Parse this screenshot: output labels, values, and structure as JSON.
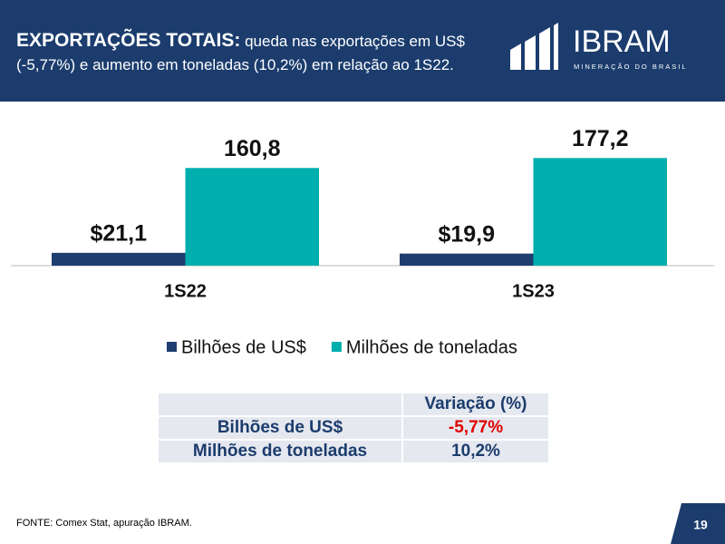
{
  "header": {
    "title": "EXPORTAÇÕES TOTAIS:",
    "subtitle": "queda nas exportações em US$ (-5,77%) e aumento em toneladas (10,2%) em relação ao 1S22.",
    "logo": "IBRAM",
    "logo_tagline": "MINERAÇÃO DO BRASIL"
  },
  "chart_data": {
    "type": "bar",
    "categories": [
      "1S22",
      "1S23"
    ],
    "series": [
      {
        "name": "Bilhões de US$",
        "color": "#1f3d6e",
        "values": [
          21.1,
          19.9
        ],
        "value_labels": [
          "$21,1",
          "$19,9"
        ]
      },
      {
        "name": "Milhões de toneladas",
        "color": "#00aeae",
        "values": [
          160.8,
          177.2
        ],
        "value_labels": [
          "160,8",
          "177,2"
        ]
      }
    ]
  },
  "table": {
    "column_header": "Variação (%)",
    "rows": [
      [
        "Bilhões de US$",
        "-5,77%"
      ],
      [
        "Milhões de toneladas",
        "10,2%"
      ]
    ]
  },
  "footer": {
    "source": "FONTE: Comex Stat, apuração IBRAM.",
    "page": "19"
  }
}
